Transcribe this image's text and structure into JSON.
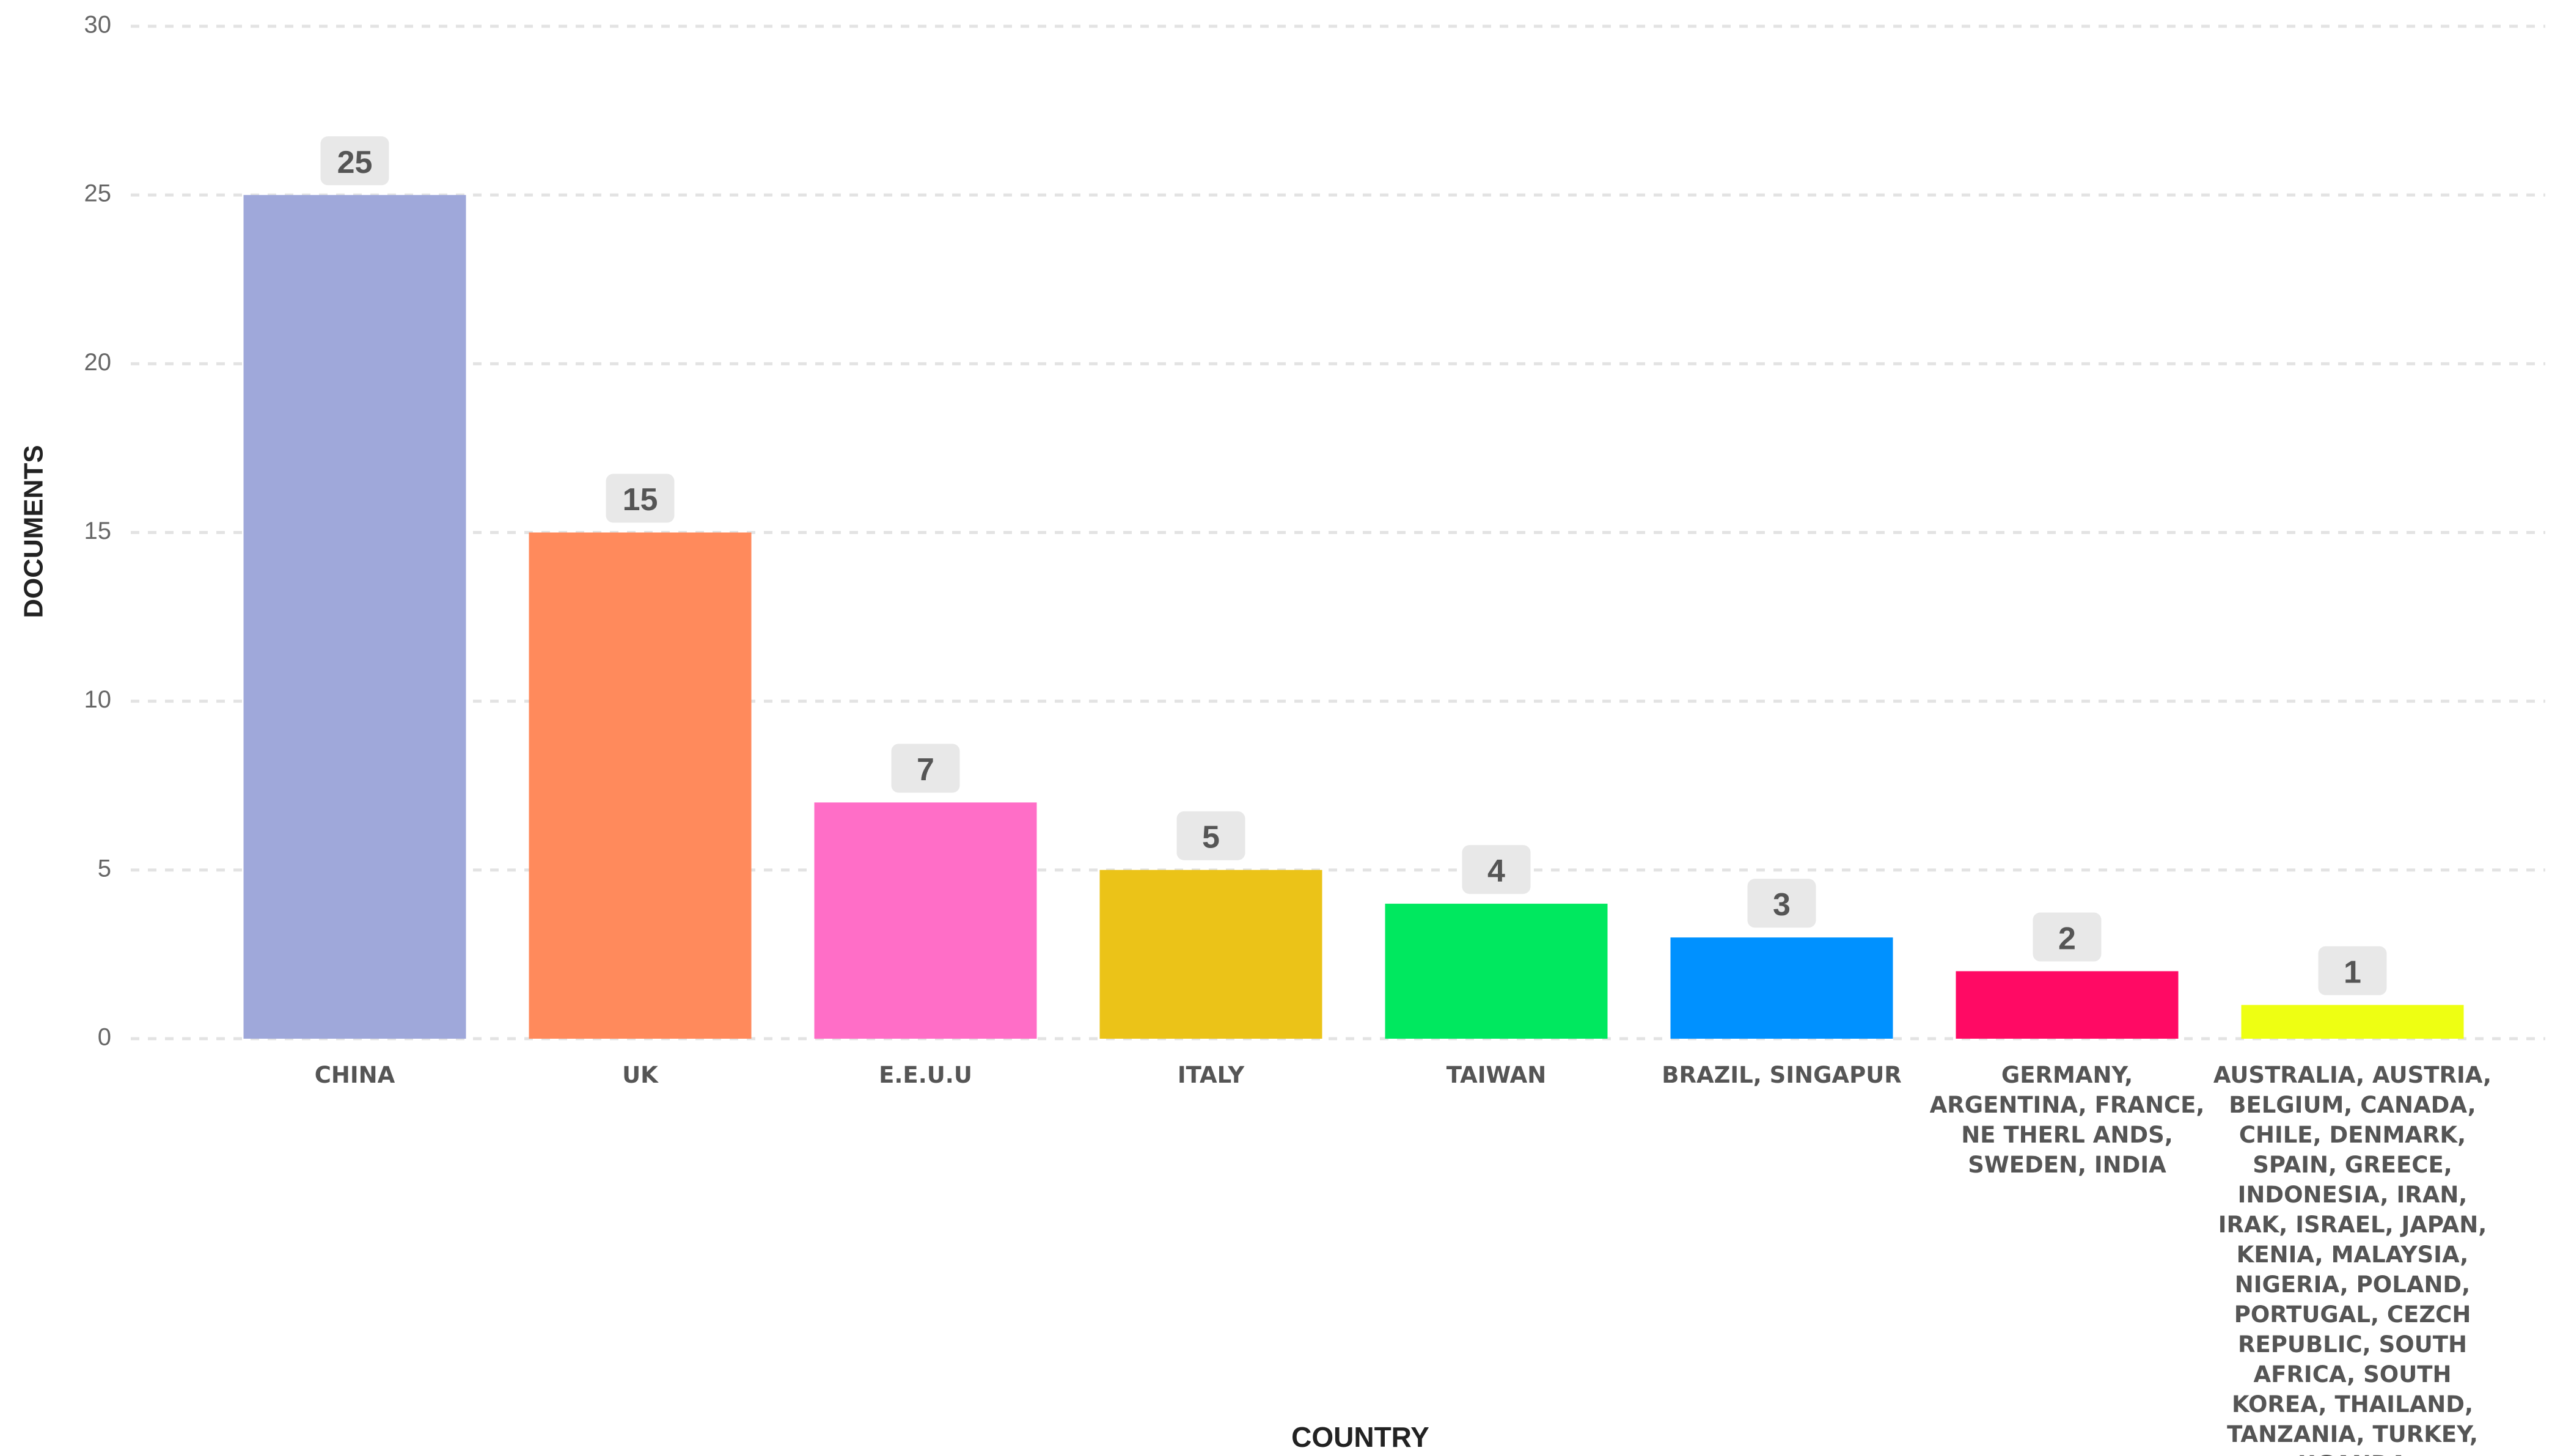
{
  "chart_data": {
    "type": "bar",
    "y_label": "DOCUMENTS",
    "x_label": "COUNTRY",
    "categories": [
      "CHINA",
      "UK",
      "E.E.U.U",
      "ITALY",
      "TAIWAN",
      "BRAZIL, SINGAPUR",
      "GERMANY, ARGENTINA, FRANCE, NE THERL ANDS, SWEDEN, INDIA",
      "AUSTRALIA, AUSTRIA, BELGIUM, CANADA, CHILE, DENMARK, SPAIN, GREECE, INDONESIA, IRAN, IRAK, ISRAEL, JAPAN, KENIA, MALAYSIA, NIGERIA, POLAND, PORTUGAL, CEZCH REPUBLIC, SOUTH AFRICA, SOUTH KOREA, THAILAND,  TANZANIA, TURKEY, UGANDA"
    ],
    "values": [
      25,
      15,
      7,
      5,
      4,
      3,
      2,
      1
    ],
    "colors": [
      "#9fa8da",
      "#ff8a5c",
      "#ff6ec7",
      "#ebc318",
      "#00e85f",
      "#0091ff",
      "#ff0a64",
      "#eeff12"
    ],
    "ylim": [
      0,
      30
    ],
    "yticks": [
      0,
      5,
      10,
      15,
      20,
      25,
      30
    ],
    "grid": true
  }
}
